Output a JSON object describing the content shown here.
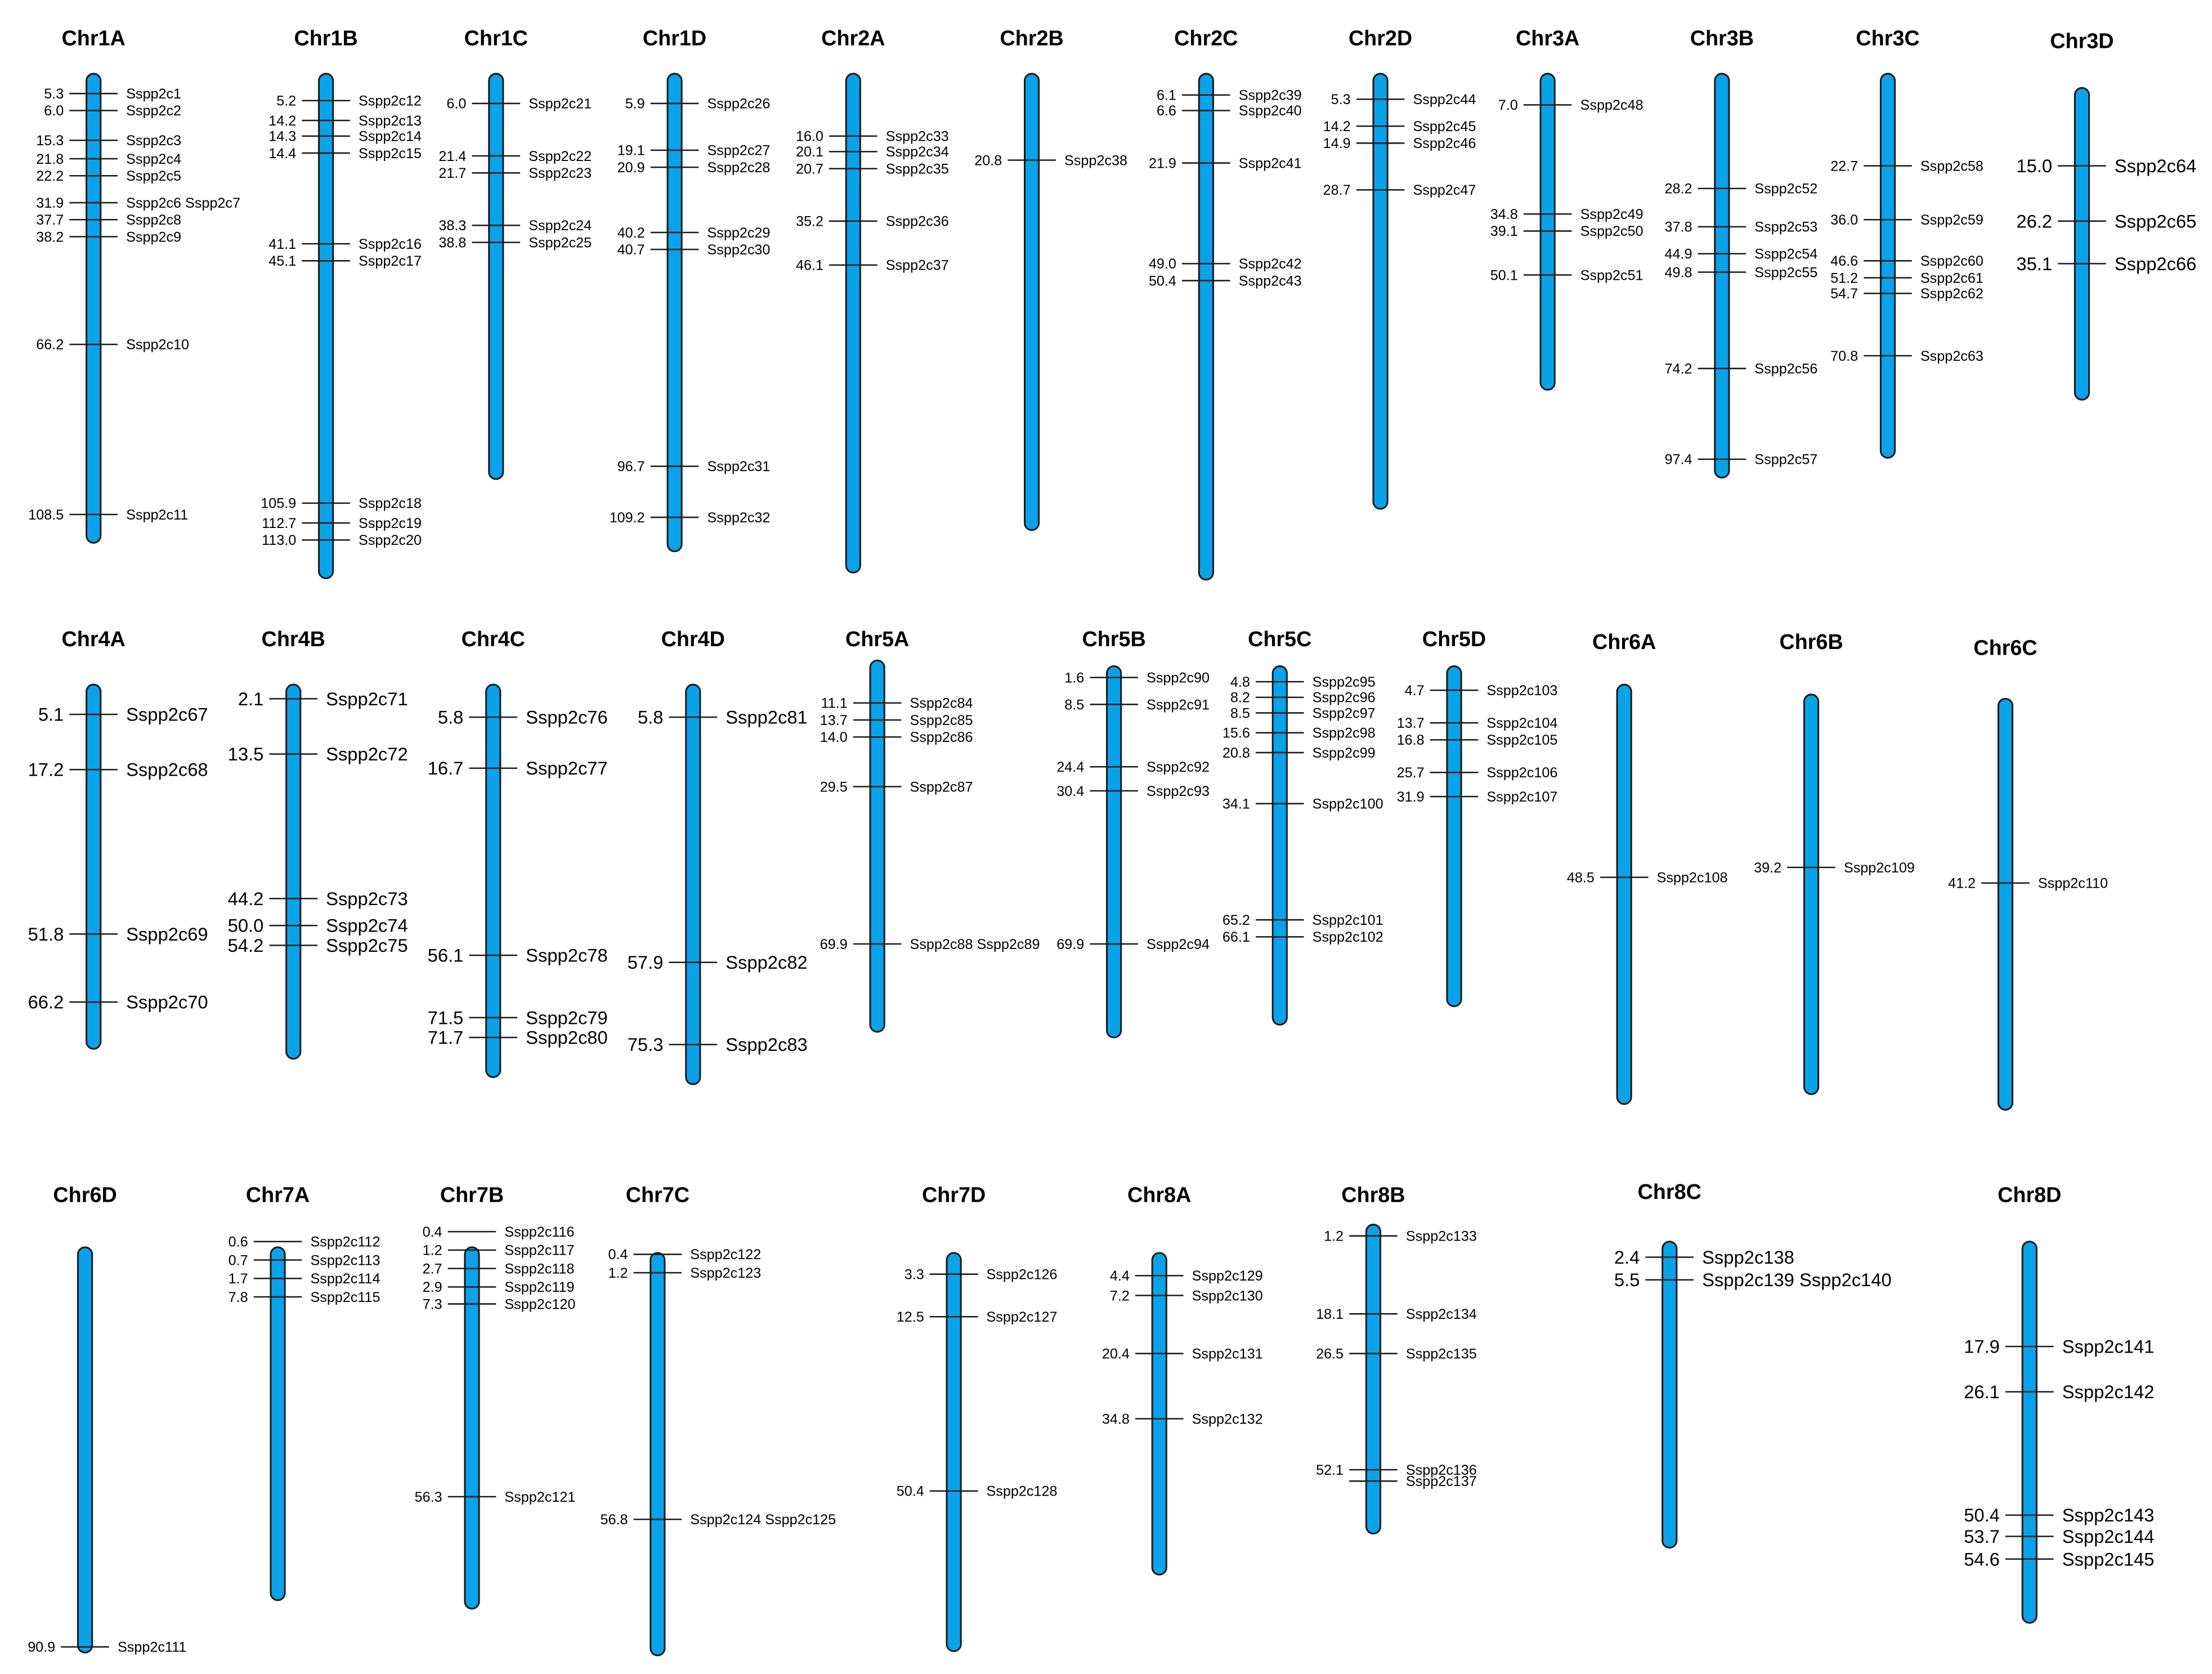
{
  "colors": {
    "chromosome": "#0aa2e8",
    "outline": "#1a1a1a",
    "text": "#000000"
  },
  "chromosomes": [
    {
      "name": "Chr1A",
      "genes": [
        {
          "pos": "5.3",
          "id": "Sspp2c1"
        },
        {
          "pos": "6.0",
          "id": "Sspp2c2"
        },
        {
          "pos": "15.3",
          "id": "Sspp2c3"
        },
        {
          "pos": "21.8",
          "id": "Sspp2c4"
        },
        {
          "pos": "22.2",
          "id": "Sspp2c5"
        },
        {
          "pos": "31.9",
          "id": "Sspp2c6 Sspp2c7"
        },
        {
          "pos": "37.7",
          "id": "Sspp2c8"
        },
        {
          "pos": "38.2",
          "id": "Sspp2c9"
        },
        {
          "pos": "66.2",
          "id": "Sspp2c10"
        },
        {
          "pos": "108.5",
          "id": "Sspp2c11"
        }
      ]
    },
    {
      "name": "Chr1B",
      "genes": [
        {
          "pos": "5.2",
          "id": "Sspp2c12"
        },
        {
          "pos": "14.2",
          "id": "Sspp2c13"
        },
        {
          "pos": "14.3",
          "id": "Sspp2c14"
        },
        {
          "pos": "14.4",
          "id": "Sspp2c15"
        },
        {
          "pos": "41.1",
          "id": "Sspp2c16"
        },
        {
          "pos": "45.1",
          "id": "Sspp2c17"
        },
        {
          "pos": "105.9",
          "id": "Sspp2c18"
        },
        {
          "pos": "112.7",
          "id": "Sspp2c19"
        },
        {
          "pos": "113.0",
          "id": "Sspp2c20"
        }
      ]
    },
    {
      "name": "Chr1C",
      "genes": [
        {
          "pos": "6.0",
          "id": "Sspp2c21"
        },
        {
          "pos": "21.4",
          "id": "Sspp2c22"
        },
        {
          "pos": "21.7",
          "id": "Sspp2c23"
        },
        {
          "pos": "38.3",
          "id": "Sspp2c24"
        },
        {
          "pos": "38.8",
          "id": "Sspp2c25"
        }
      ]
    },
    {
      "name": "Chr1D",
      "genes": [
        {
          "pos": "5.9",
          "id": "Sspp2c26"
        },
        {
          "pos": "19.1",
          "id": "Sspp2c27"
        },
        {
          "pos": "20.9",
          "id": "Sspp2c28"
        },
        {
          "pos": "40.2",
          "id": "Sspp2c29"
        },
        {
          "pos": "40.7",
          "id": "Sspp2c30"
        },
        {
          "pos": "96.7",
          "id": "Sspp2c31"
        },
        {
          "pos": "109.2",
          "id": "Sspp2c32"
        }
      ]
    },
    {
      "name": "Chr2A",
      "genes": [
        {
          "pos": "16.0",
          "id": "Sspp2c33"
        },
        {
          "pos": "20.1",
          "id": "Sspp2c34"
        },
        {
          "pos": "20.7",
          "id": "Sspp2c35"
        },
        {
          "pos": "35.2",
          "id": "Sspp2c36"
        },
        {
          "pos": "46.1",
          "id": "Sspp2c37"
        }
      ]
    },
    {
      "name": "Chr2B",
      "genes": [
        {
          "pos": "20.8",
          "id": "Sspp2c38"
        }
      ]
    },
    {
      "name": "Chr2C",
      "genes": [
        {
          "pos": "6.1",
          "id": "Sspp2c39"
        },
        {
          "pos": "6.6",
          "id": "Sspp2c40"
        },
        {
          "pos": "21.9",
          "id": "Sspp2c41"
        },
        {
          "pos": "49.0",
          "id": "Sspp2c42"
        },
        {
          "pos": "50.4",
          "id": "Sspp2c43"
        }
      ]
    },
    {
      "name": "Chr2D",
      "genes": [
        {
          "pos": "5.3",
          "id": "Sspp2c44"
        },
        {
          "pos": "14.2",
          "id": "Sspp2c45"
        },
        {
          "pos": "14.9",
          "id": "Sspp2c46"
        },
        {
          "pos": "28.7",
          "id": "Sspp2c47"
        }
      ]
    },
    {
      "name": "Chr3A",
      "genes": [
        {
          "pos": "7.0",
          "id": "Sspp2c48"
        },
        {
          "pos": "34.8",
          "id": "Sspp2c49"
        },
        {
          "pos": "39.1",
          "id": "Sspp2c50"
        },
        {
          "pos": "50.1",
          "id": "Sspp2c51"
        }
      ]
    },
    {
      "name": "Chr3B",
      "genes": [
        {
          "pos": "28.2",
          "id": "Sspp2c52"
        },
        {
          "pos": "37.8",
          "id": "Sspp2c53"
        },
        {
          "pos": "44.9",
          "id": "Sspp2c54"
        },
        {
          "pos": "49.8",
          "id": "Sspp2c55"
        },
        {
          "pos": "74.2",
          "id": "Sspp2c56"
        },
        {
          "pos": "97.4",
          "id": "Sspp2c57"
        }
      ]
    },
    {
      "name": "Chr3C",
      "genes": [
        {
          "pos": "22.7",
          "id": "Sspp2c58"
        },
        {
          "pos": "36.0",
          "id": "Sspp2c59"
        },
        {
          "pos": "46.6",
          "id": "Sspp2c60"
        },
        {
          "pos": "51.2",
          "id": "Sspp2c61"
        },
        {
          "pos": "54.7",
          "id": "Sspp2c62"
        },
        {
          "pos": "70.8",
          "id": "Sspp2c63"
        }
      ]
    },
    {
      "name": "Chr3D",
      "genes": [
        {
          "pos": "15.0",
          "id": "Sspp2c64"
        },
        {
          "pos": "26.2",
          "id": "Sspp2c65"
        },
        {
          "pos": "35.1",
          "id": "Sspp2c66"
        }
      ]
    },
    {
      "name": "Chr4A",
      "genes": [
        {
          "pos": "5.1",
          "id": "Sspp2c67"
        },
        {
          "pos": "17.2",
          "id": "Sspp2c68"
        },
        {
          "pos": "51.8",
          "id": "Sspp2c69"
        },
        {
          "pos": "66.2",
          "id": "Sspp2c70"
        }
      ]
    },
    {
      "name": "Chr4B",
      "genes": [
        {
          "pos": "2.1",
          "id": "Sspp2c71"
        },
        {
          "pos": "13.5",
          "id": "Sspp2c72"
        },
        {
          "pos": "44.2",
          "id": "Sspp2c73"
        },
        {
          "pos": "50.0",
          "id": "Sspp2c74"
        },
        {
          "pos": "54.2",
          "id": "Sspp2c75"
        }
      ]
    },
    {
      "name": "Chr4C",
      "genes": [
        {
          "pos": "5.8",
          "id": "Sspp2c76"
        },
        {
          "pos": "16.7",
          "id": "Sspp2c77"
        },
        {
          "pos": "56.1",
          "id": "Sspp2c78"
        },
        {
          "pos": "71.5",
          "id": "Sspp2c79"
        },
        {
          "pos": "71.7",
          "id": "Sspp2c80"
        }
      ]
    },
    {
      "name": "Chr4D",
      "genes": [
        {
          "pos": "5.8",
          "id": "Sspp2c81"
        },
        {
          "pos": "57.9",
          "id": "Sspp2c82"
        },
        {
          "pos": "75.3",
          "id": "Sspp2c83"
        }
      ]
    },
    {
      "name": "Chr5A",
      "genes": [
        {
          "pos": "11.1",
          "id": "Sspp2c84"
        },
        {
          "pos": "13.7",
          "id": "Sspp2c85"
        },
        {
          "pos": "14.0",
          "id": "Sspp2c86"
        },
        {
          "pos": "29.5",
          "id": "Sspp2c87"
        },
        {
          "pos": "69.9",
          "id": "Sspp2c88 Sspp2c89"
        }
      ]
    },
    {
      "name": "Chr5B",
      "genes": [
        {
          "pos": "1.6",
          "id": "Sspp2c90"
        },
        {
          "pos": "8.5",
          "id": "Sspp2c91"
        },
        {
          "pos": "24.4",
          "id": "Sspp2c92"
        },
        {
          "pos": "30.4",
          "id": "Sspp2c93"
        },
        {
          "pos": "69.9",
          "id": "Sspp2c94"
        }
      ]
    },
    {
      "name": "Chr5C",
      "genes": [
        {
          "pos": "4.8",
          "id": "Sspp2c95"
        },
        {
          "pos": "8.2",
          "id": "Sspp2c96"
        },
        {
          "pos": "8.5",
          "id": "Sspp2c97"
        },
        {
          "pos": "15.6",
          "id": "Sspp2c98"
        },
        {
          "pos": "20.8",
          "id": "Sspp2c99"
        },
        {
          "pos": "34.1",
          "id": "Sspp2c100"
        },
        {
          "pos": "65.2",
          "id": "Sspp2c101"
        },
        {
          "pos": "66.1",
          "id": "Sspp2c102"
        }
      ]
    },
    {
      "name": "Chr5D",
      "genes": [
        {
          "pos": "4.7",
          "id": "Sspp2c103"
        },
        {
          "pos": "13.7",
          "id": "Sspp2c104"
        },
        {
          "pos": "16.8",
          "id": "Sspp2c105"
        },
        {
          "pos": "25.7",
          "id": "Sspp2c106"
        },
        {
          "pos": "31.9",
          "id": "Sspp2c107"
        }
      ]
    },
    {
      "name": "Chr6A",
      "genes": [
        {
          "pos": "48.5",
          "id": "Sspp2c108"
        }
      ]
    },
    {
      "name": "Chr6B",
      "genes": [
        {
          "pos": "39.2",
          "id": "Sspp2c109"
        }
      ]
    },
    {
      "name": "Chr6C",
      "genes": [
        {
          "pos": "41.2",
          "id": "Sspp2c110"
        }
      ]
    },
    {
      "name": "Chr6D",
      "genes": [
        {
          "pos": "90.9",
          "id": "Sspp2c111"
        }
      ]
    },
    {
      "name": "Chr7A",
      "genes": [
        {
          "pos": "0.6",
          "id": "Sspp2c112"
        },
        {
          "pos": "0.7",
          "id": "Sspp2c113"
        },
        {
          "pos": "1.7",
          "id": "Sspp2c114"
        },
        {
          "pos": "7.8",
          "id": "Sspp2c115"
        }
      ]
    },
    {
      "name": "Chr7B",
      "genes": [
        {
          "pos": "0.4",
          "id": "Sspp2c116"
        },
        {
          "pos": "1.2",
          "id": "Sspp2c117"
        },
        {
          "pos": "2.7",
          "id": "Sspp2c118"
        },
        {
          "pos": "2.9",
          "id": "Sspp2c119"
        },
        {
          "pos": "7.3",
          "id": "Sspp2c120"
        },
        {
          "pos": "56.3",
          "id": "Sspp2c121"
        }
      ]
    },
    {
      "name": "Chr7C",
      "genes": [
        {
          "pos": "0.4",
          "id": "Sspp2c122"
        },
        {
          "pos": "1.2",
          "id": "Sspp2c123"
        },
        {
          "pos": "56.8",
          "id": "Sspp2c124 Sspp2c125"
        }
      ]
    },
    {
      "name": "Chr7D",
      "genes": [
        {
          "pos": "3.3",
          "id": "Sspp2c126"
        },
        {
          "pos": "12.5",
          "id": "Sspp2c127"
        },
        {
          "pos": "50.4",
          "id": "Sspp2c128"
        }
      ]
    },
    {
      "name": "Chr8A",
      "genes": [
        {
          "pos": "4.4",
          "id": "Sspp2c129"
        },
        {
          "pos": "7.2",
          "id": "Sspp2c130"
        },
        {
          "pos": "20.4",
          "id": "Sspp2c131"
        },
        {
          "pos": "34.8",
          "id": "Sspp2c132"
        }
      ]
    },
    {
      "name": "Chr8B",
      "genes": [
        {
          "pos": "1.2",
          "id": "Sspp2c133"
        },
        {
          "pos": "18.1",
          "id": "Sspp2c134"
        },
        {
          "pos": "26.5",
          "id": "Sspp2c135"
        },
        {
          "pos": "52.1",
          "id": "Sspp2c136"
        },
        {
          "pos": "",
          "id": "Sspp2c137"
        }
      ]
    },
    {
      "name": "Chr8C",
      "genes": [
        {
          "pos": "2.4",
          "id": "Sspp2c138"
        },
        {
          "pos": "5.5",
          "id": "Sspp2c139 Sspp2c140"
        }
      ]
    },
    {
      "name": "Chr8D",
      "genes": [
        {
          "pos": "17.9",
          "id": "Sspp2c141"
        },
        {
          "pos": "26.1",
          "id": "Sspp2c142"
        },
        {
          "pos": "50.4",
          "id": "Sspp2c143"
        },
        {
          "pos": "53.7",
          "id": "Sspp2c144"
        },
        {
          "pos": "54.6",
          "id": "Sspp2c145"
        }
      ]
    }
  ]
}
